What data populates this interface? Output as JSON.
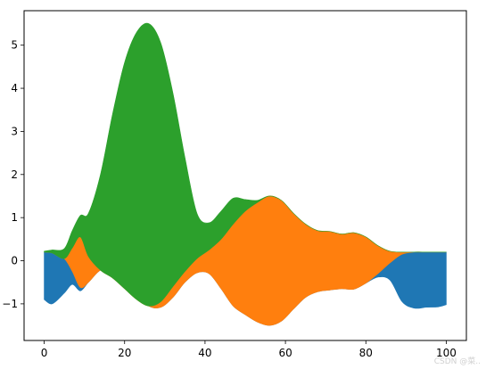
{
  "chart_data": {
    "type": "area",
    "subtype": "stackplot-symmetric-baseline",
    "title": "",
    "xlabel": "",
    "ylabel": "",
    "xlim": [
      -5,
      105
    ],
    "ylim": [
      -1.85,
      5.8
    ],
    "xticks": [
      0,
      20,
      40,
      60,
      80,
      100
    ],
    "yticks": [
      -1,
      0,
      1,
      2,
      3,
      4,
      5
    ],
    "grid": false,
    "legend": "none",
    "x": [
      0,
      2,
      5,
      7,
      9,
      11,
      14,
      17,
      20,
      23,
      26,
      29,
      32,
      35,
      38,
      41,
      44,
      47,
      50,
      53,
      56,
      59,
      62,
      65,
      68,
      71,
      74,
      77,
      80,
      83,
      86,
      89,
      92,
      95,
      98,
      100
    ],
    "series": [
      {
        "color": "#1f77b4",
        "bottom": [
          -0.9,
          -1.0,
          -0.75,
          -0.55,
          -0.7,
          -0.5,
          -0.22,
          -0.24,
          -0.48,
          -0.78,
          -1.05,
          -1.08,
          -0.85,
          -0.5,
          -0.28,
          -0.3,
          -0.65,
          -1.05,
          -1.25,
          -1.42,
          -1.5,
          -1.4,
          -1.12,
          -0.85,
          -0.72,
          -0.68,
          -0.65,
          -0.66,
          -0.52,
          -0.38,
          -0.45,
          -0.95,
          -1.1,
          -1.08,
          -1.07,
          -1.02
        ],
        "top": [
          0.2,
          0.18,
          0.05,
          -0.25,
          -0.62,
          -0.5,
          -0.22,
          -0.24,
          -0.48,
          -0.78,
          -1.05,
          -1.08,
          -0.85,
          -0.5,
          -0.28,
          -0.3,
          -0.65,
          -1.05,
          -1.25,
          -1.42,
          -1.5,
          -1.4,
          -1.12,
          -0.85,
          -0.72,
          -0.68,
          -0.65,
          -0.66,
          -0.52,
          -0.3,
          -0.05,
          0.15,
          0.2,
          0.2,
          0.2,
          0.2
        ]
      },
      {
        "color": "#ff7f0e",
        "top": [
          0.2,
          0.18,
          0.05,
          0.3,
          0.55,
          0.1,
          -0.22,
          -0.4,
          -0.65,
          -0.9,
          -1.05,
          -0.95,
          -0.6,
          -0.25,
          0.05,
          0.25,
          0.5,
          0.85,
          1.15,
          1.35,
          1.5,
          1.4,
          1.1,
          0.85,
          0.7,
          0.68,
          0.62,
          0.65,
          0.55,
          0.35,
          0.22,
          0.2,
          0.2,
          0.2,
          0.2,
          0.2
        ]
      },
      {
        "color": "#2ca02c",
        "top": [
          0.22,
          0.25,
          0.28,
          0.7,
          1.05,
          1.1,
          2.0,
          3.4,
          4.6,
          5.3,
          5.5,
          5.05,
          3.9,
          2.4,
          1.1,
          0.88,
          1.15,
          1.45,
          1.42,
          1.4,
          1.5,
          1.4,
          1.1,
          0.85,
          0.7,
          0.68,
          0.62,
          0.65,
          0.55,
          0.35,
          0.22,
          0.2,
          0.2,
          0.2,
          0.2,
          0.2
        ]
      }
    ]
  },
  "watermark": "CSDN @菜.."
}
